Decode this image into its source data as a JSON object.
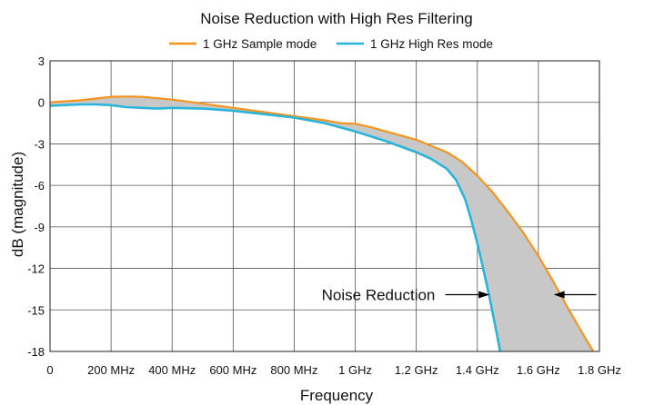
{
  "chart_data": {
    "type": "line",
    "title": "Noise Reduction with High Res Filtering",
    "xlabel": "Frequency",
    "ylabel": "dB (magnitude)",
    "xlim": [
      0,
      1800
    ],
    "ylim": [
      -18,
      3
    ],
    "x_unit": "MHz",
    "x_ticks": [
      {
        "value": 0,
        "label": "0"
      },
      {
        "value": 200,
        "label": "200 MHz"
      },
      {
        "value": 400,
        "label": "400 MHz"
      },
      {
        "value": 600,
        "label": "600 MHz"
      },
      {
        "value": 800,
        "label": "800 MHz"
      },
      {
        "value": 1000,
        "label": "1 GHz"
      },
      {
        "value": 1200,
        "label": "1.2 GHz"
      },
      {
        "value": 1400,
        "label": "1.4 GHz"
      },
      {
        "value": 1600,
        "label": "1.6 GHz"
      },
      {
        "value": 1800,
        "label": "1.8 GHz"
      }
    ],
    "y_ticks": [
      {
        "value": 3,
        "label": "3"
      },
      {
        "value": 0,
        "label": "0"
      },
      {
        "value": -3,
        "label": "-3"
      },
      {
        "value": -6,
        "label": "-6"
      },
      {
        "value": -9,
        "label": "-9"
      },
      {
        "value": -12,
        "label": "-12"
      },
      {
        "value": -15,
        "label": "-15"
      },
      {
        "value": -18,
        "label": "-18"
      }
    ],
    "grid": true,
    "legend_position": "top-center",
    "series": [
      {
        "name": "1 GHz Sample mode",
        "color": "#f7941d",
        "points": [
          [
            0,
            0
          ],
          [
            100,
            0.15
          ],
          [
            200,
            0.4
          ],
          [
            260,
            0.42
          ],
          [
            300,
            0.4
          ],
          [
            400,
            0.2
          ],
          [
            500,
            -0.1
          ],
          [
            600,
            -0.4
          ],
          [
            700,
            -0.7
          ],
          [
            800,
            -1.0
          ],
          [
            900,
            -1.3
          ],
          [
            950,
            -1.5
          ],
          [
            1000,
            -1.55
          ],
          [
            1050,
            -1.8
          ],
          [
            1100,
            -2.1
          ],
          [
            1200,
            -2.7
          ],
          [
            1300,
            -3.6
          ],
          [
            1350,
            -4.3
          ],
          [
            1400,
            -5.3
          ],
          [
            1450,
            -6.5
          ],
          [
            1500,
            -7.9
          ],
          [
            1550,
            -9.4
          ],
          [
            1600,
            -11.1
          ],
          [
            1650,
            -13.0
          ],
          [
            1700,
            -15.0
          ],
          [
            1750,
            -16.9
          ],
          [
            1780,
            -18.0
          ]
        ]
      },
      {
        "name": "1 GHz High Res mode",
        "color": "#29b5d9",
        "points": [
          [
            0,
            -0.25
          ],
          [
            100,
            -0.15
          ],
          [
            150,
            -0.15
          ],
          [
            200,
            -0.2
          ],
          [
            250,
            -0.35
          ],
          [
            300,
            -0.4
          ],
          [
            350,
            -0.45
          ],
          [
            400,
            -0.4
          ],
          [
            500,
            -0.45
          ],
          [
            600,
            -0.6
          ],
          [
            700,
            -0.85
          ],
          [
            800,
            -1.1
          ],
          [
            900,
            -1.5
          ],
          [
            1000,
            -2.1
          ],
          [
            1100,
            -2.8
          ],
          [
            1200,
            -3.6
          ],
          [
            1250,
            -4.1
          ],
          [
            1300,
            -4.8
          ],
          [
            1330,
            -5.6
          ],
          [
            1360,
            -7.0
          ],
          [
            1380,
            -8.5
          ],
          [
            1400,
            -10.2
          ],
          [
            1420,
            -12.1
          ],
          [
            1440,
            -14.1
          ],
          [
            1460,
            -16.3
          ],
          [
            1475,
            -18.0
          ]
        ]
      }
    ],
    "shaded_region": {
      "between": [
        "1 GHz Sample mode",
        "1 GHz High Res mode"
      ],
      "color": "#c8c8c8"
    },
    "annotations": [
      {
        "text": "Noise Reduction",
        "x": 890,
        "y": -13.9,
        "arrow_from": [
          1295,
          -13.9
        ],
        "arrow_to": [
          1440,
          -13.9
        ]
      },
      {
        "text": "",
        "x": null,
        "y": null,
        "arrow_from": [
          1790,
          -13.9
        ],
        "arrow_to": [
          1650,
          -13.9
        ]
      }
    ]
  }
}
